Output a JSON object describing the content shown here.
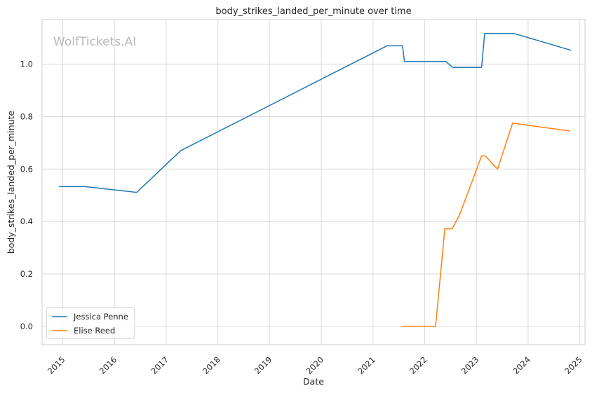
{
  "chart_data": {
    "type": "line",
    "title": "body_strikes_landed_per_minute over time",
    "xlabel": "Date",
    "ylabel": "body_strikes_landed_per_minute",
    "watermark": "WolfTickets.AI",
    "xlim": [
      2014.6,
      2025.1
    ],
    "ylim": [
      -0.07,
      1.17
    ],
    "x_ticks": [
      {
        "value": 2015,
        "label": "2015"
      },
      {
        "value": 2016,
        "label": "2016"
      },
      {
        "value": 2017,
        "label": "2017"
      },
      {
        "value": 2018,
        "label": "2018"
      },
      {
        "value": 2019,
        "label": "2019"
      },
      {
        "value": 2020,
        "label": "2020"
      },
      {
        "value": 2021,
        "label": "2021"
      },
      {
        "value": 2022,
        "label": "2022"
      },
      {
        "value": 2023,
        "label": "2023"
      },
      {
        "value": 2024,
        "label": "2024"
      },
      {
        "value": 2025,
        "label": "2025"
      }
    ],
    "y_ticks": [
      {
        "value": 0.0,
        "label": "0.0"
      },
      {
        "value": 0.2,
        "label": "0.2"
      },
      {
        "value": 0.4,
        "label": "0.4"
      },
      {
        "value": 0.6,
        "label": "0.6"
      },
      {
        "value": 0.8,
        "label": "0.8"
      },
      {
        "value": 1.0,
        "label": "1.0"
      }
    ],
    "grid": true,
    "legend_position": "lower-left",
    "series": [
      {
        "name": "Jessica Penne",
        "color": "#1f77b4",
        "points": [
          [
            2014.93,
            0.533
          ],
          [
            2015.43,
            0.533
          ],
          [
            2016.43,
            0.511
          ],
          [
            2017.28,
            0.67
          ],
          [
            2021.27,
            1.07
          ],
          [
            2021.57,
            1.07
          ],
          [
            2021.61,
            1.01
          ],
          [
            2022.41,
            1.01
          ],
          [
            2022.54,
            0.988
          ],
          [
            2023.1,
            0.988
          ],
          [
            2023.16,
            1.117
          ],
          [
            2023.73,
            1.117
          ],
          [
            2024.83,
            1.053
          ]
        ]
      },
      {
        "name": "Elise Reed",
        "color": "#ff7f0e",
        "points": [
          [
            2021.55,
            0.0
          ],
          [
            2022.21,
            0.0
          ],
          [
            2022.39,
            0.372
          ],
          [
            2022.53,
            0.372
          ],
          [
            2022.68,
            0.428
          ],
          [
            2023.1,
            0.65
          ],
          [
            2023.17,
            0.65
          ],
          [
            2023.41,
            0.6
          ],
          [
            2023.7,
            0.775
          ],
          [
            2024.81,
            0.745
          ]
        ]
      }
    ]
  }
}
